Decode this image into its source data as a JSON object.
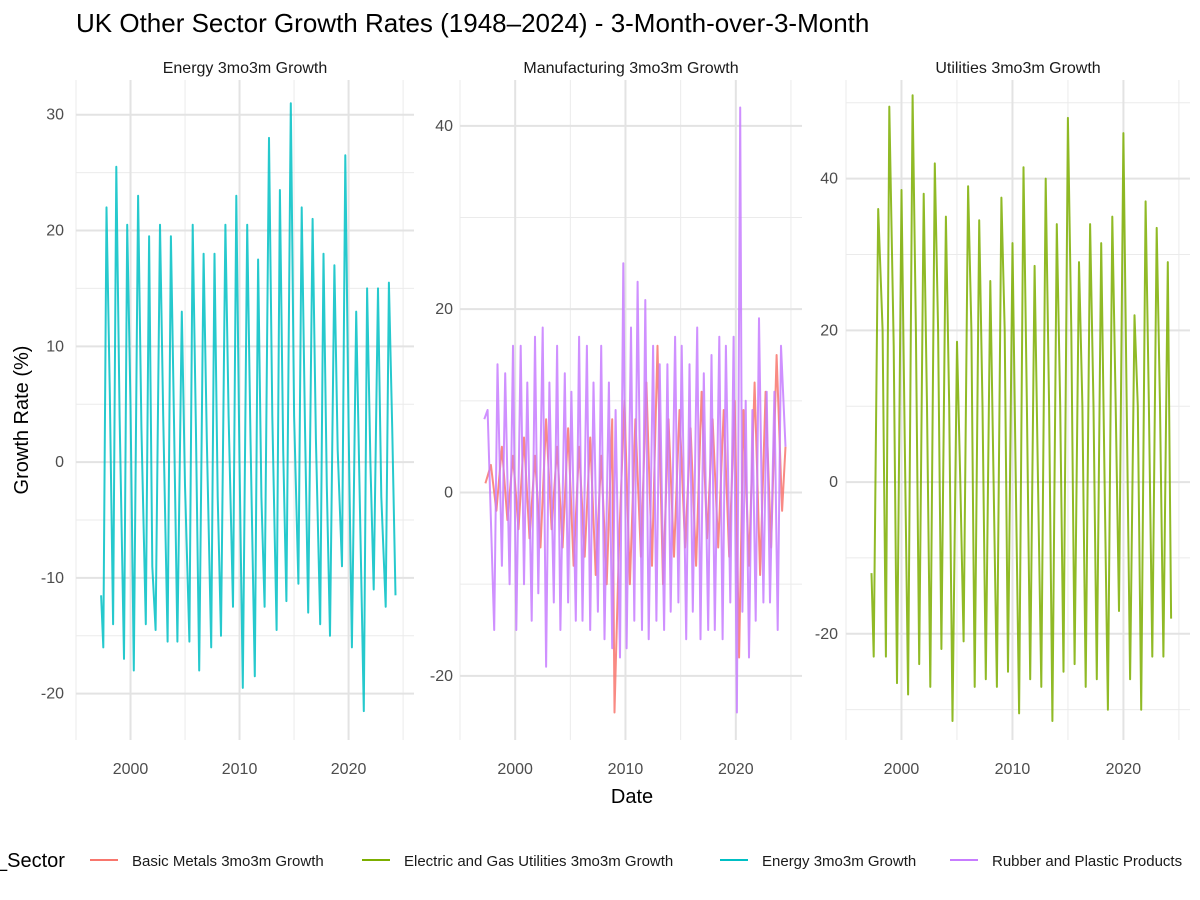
{
  "chart_data": {
    "type": "line",
    "title": "UK Other Sector Growth Rates (1948–2024) - 3-Month-over-3-Month",
    "xlabel": "Date",
    "ylabel": "Growth Rate (%)",
    "legend_title": "_Sector",
    "legend_position": "bottom",
    "grid": true,
    "colors": {
      "Basic Metals 3mo3m Growth": "#F8766D",
      "Electric and Gas Utilities 3mo3m Growth": "#7CAE00",
      "Energy 3mo3m Growth": "#00BFC4",
      "Rubber and Plastic Products": "#C77CFF"
    },
    "legend": [
      "Basic Metals 3mo3m Growth",
      "Electric and Gas Utilities 3mo3m Growth",
      "Energy 3mo3m Growth",
      "Rubber and Plastic Products"
    ],
    "panels": [
      {
        "title": "Energy 3mo3m Growth",
        "xlim": [
          1995,
          2026
        ],
        "ylim": [
          -24,
          33
        ],
        "x_ticks": [
          2000,
          2010,
          2020
        ],
        "y_ticks": [
          -20,
          -10,
          0,
          10,
          20,
          30
        ],
        "series": [
          {
            "name": "Energy 3mo3m Growth",
            "x": [
              1997.3,
              1997.5,
              1997.8,
              1998.1,
              1998.4,
              1998.7,
              1999.0,
              1999.4,
              1999.7,
              2000.0,
              2000.3,
              2000.7,
              2001.0,
              2001.4,
              2001.7,
              2002.0,
              2002.3,
              2002.7,
              2003.0,
              2003.4,
              2003.7,
              2004.0,
              2004.3,
              2004.7,
              2005.0,
              2005.4,
              2005.7,
              2006.0,
              2006.3,
              2006.7,
              2007.0,
              2007.4,
              2007.7,
              2008.0,
              2008.3,
              2008.7,
              2009.0,
              2009.4,
              2009.7,
              2010.0,
              2010.3,
              2010.7,
              2011.0,
              2011.4,
              2011.7,
              2012.0,
              2012.3,
              2012.7,
              2013.0,
              2013.4,
              2013.7,
              2014.0,
              2014.3,
              2014.7,
              2015.0,
              2015.4,
              2015.7,
              2016.0,
              2016.3,
              2016.7,
              2017.0,
              2017.4,
              2017.7,
              2018.0,
              2018.3,
              2018.7,
              2019.0,
              2019.4,
              2019.7,
              2020.0,
              2020.3,
              2020.7,
              2021.0,
              2021.4,
              2021.7,
              2022.0,
              2022.3,
              2022.7,
              2023.0,
              2023.4,
              2023.7,
              2024.0,
              2024.3
            ],
            "values": [
              -11.5,
              -16,
              22,
              6,
              -14,
              25.5,
              4,
              -17,
              20.5,
              5,
              -18,
              23,
              3,
              -14,
              19.5,
              -9,
              -14.5,
              20.5,
              4,
              -15.5,
              19.5,
              3,
              -15.5,
              13,
              -2,
              -15.5,
              20.5,
              3,
              -18,
              18,
              2,
              -16,
              18,
              -3,
              -15,
              20.5,
              4,
              -12.5,
              23,
              0,
              -19.5,
              20.5,
              2,
              -18.5,
              17.5,
              -3,
              -12.5,
              28,
              4,
              -14.5,
              23.5,
              1,
              -12,
              31,
              4,
              -10.5,
              22,
              3,
              -13,
              21,
              2,
              -14,
              18,
              -2,
              -15,
              17,
              1,
              -9,
              26.5,
              3,
              -16,
              13,
              -2,
              -21.5,
              15,
              0,
              -11,
              15,
              -3,
              -12.5,
              15.5,
              3,
              -11.5
            ]
          }
        ]
      },
      {
        "title": "Manufacturing 3mo3m Growth",
        "xlim": [
          1995,
          2026
        ],
        "ylim": [
          -27,
          45
        ],
        "x_ticks": [
          2000,
          2010,
          2020
        ],
        "y_ticks": [
          -20,
          0,
          20,
          40
        ],
        "series": [
          {
            "name": "Basic Metals 3mo3m Growth",
            "x": [
              1997.3,
              1997.8,
              1998.3,
              1998.8,
              1999.3,
              1999.8,
              2000.3,
              2000.8,
              2001.3,
              2001.8,
              2002.3,
              2002.8,
              2003.3,
              2003.8,
              2004.3,
              2004.8,
              2005.3,
              2005.8,
              2006.3,
              2006.8,
              2007.3,
              2007.8,
              2008.3,
              2008.8,
              2009.0,
              2009.4,
              2009.9,
              2010.4,
              2010.9,
              2011.4,
              2011.9,
              2012.4,
              2012.9,
              2013.4,
              2013.9,
              2014.4,
              2014.9,
              2015.4,
              2015.9,
              2016.4,
              2016.9,
              2017.4,
              2017.9,
              2018.4,
              2018.9,
              2019.4,
              2019.9,
              2020.3,
              2020.7,
              2021.2,
              2021.7,
              2022.2,
              2022.7,
              2023.2,
              2023.7,
              2024.2,
              2024.5
            ],
            "values": [
              1,
              3,
              -2,
              5,
              -3,
              4,
              -4,
              6,
              -5,
              4,
              -6,
              8,
              -4,
              5,
              -6,
              7,
              -8,
              5,
              -7,
              6,
              -9,
              4,
              -10,
              8,
              -24,
              -6,
              10,
              -10,
              8,
              -7,
              12,
              -8,
              16,
              -10,
              8,
              -7,
              9,
              -6,
              7,
              -8,
              11,
              -5,
              8,
              -6,
              9,
              -7,
              10,
              -18,
              9,
              -8,
              12,
              -9,
              11,
              -6,
              15,
              -2,
              5
            ]
          },
          {
            "name": "Rubber and Plastic Products",
            "x": [
              1997.2,
              1997.5,
              1997.8,
              1998.1,
              1998.4,
              1998.8,
              1999.1,
              1999.5,
              1999.8,
              2000.1,
              2000.5,
              2000.8,
              2001.1,
              2001.5,
              2001.8,
              2002.1,
              2002.5,
              2002.8,
              2003.1,
              2003.5,
              2003.8,
              2004.1,
              2004.5,
              2004.8,
              2005.1,
              2005.5,
              2005.8,
              2006.1,
              2006.5,
              2006.8,
              2007.1,
              2007.5,
              2007.8,
              2008.1,
              2008.5,
              2008.8,
              2009.1,
              2009.5,
              2009.8,
              2010.1,
              2010.5,
              2010.8,
              2011.1,
              2011.5,
              2011.8,
              2012.1,
              2012.5,
              2012.8,
              2013.1,
              2013.5,
              2013.8,
              2014.1,
              2014.5,
              2014.8,
              2015.1,
              2015.5,
              2015.8,
              2016.1,
              2016.5,
              2016.8,
              2017.1,
              2017.5,
              2017.8,
              2018.1,
              2018.5,
              2018.8,
              2019.1,
              2019.5,
              2019.8,
              2020.1,
              2020.4,
              2020.6,
              2020.9,
              2021.2,
              2021.5,
              2021.8,
              2022.1,
              2022.5,
              2022.8,
              2023.1,
              2023.5,
              2023.8,
              2024.1,
              2024.5
            ],
            "values": [
              8,
              9,
              -3,
              -15,
              14,
              -8,
              13,
              -10,
              16,
              -15,
              16,
              -10,
              12,
              -14,
              17,
              -11,
              18,
              -19,
              12,
              -12,
              16,
              -15,
              13,
              -12,
              11,
              -14,
              17,
              -14,
              16,
              -15,
              12,
              -13,
              16,
              -16,
              12,
              -17,
              9,
              -18,
              25,
              -17,
              18,
              -14,
              23,
              -15,
              21,
              -16,
              16,
              -14,
              14,
              -15,
              14,
              -13,
              17,
              -12,
              16,
              -16,
              14,
              -13,
              18,
              -16,
              13,
              -15,
              15,
              -15,
              17,
              -16,
              16,
              -12,
              17,
              -24,
              42,
              -13,
              10,
              -18,
              9,
              -14,
              19,
              -12,
              11,
              -12,
              11,
              -15,
              16,
              5
            ]
          }
        ]
      },
      {
        "title": "Utilities 3mo3m Growth",
        "xlim": [
          1995,
          2026
        ],
        "ylim": [
          -34,
          53
        ],
        "x_ticks": [
          2000,
          2010,
          2020
        ],
        "y_ticks": [
          -20,
          0,
          20,
          40
        ],
        "series": [
          {
            "name": "Electric and Gas Utilities 3mo3m Growth",
            "x": [
              1997.3,
              1997.5,
              1997.9,
              1998.3,
              1998.6,
              1998.9,
              1999.3,
              1999.6,
              2000.0,
              2000.3,
              2000.6,
              2001.0,
              2001.3,
              2001.6,
              2002.0,
              2002.3,
              2002.6,
              2003.0,
              2003.3,
              2003.6,
              2004.0,
              2004.3,
              2004.6,
              2005.0,
              2005.3,
              2005.6,
              2006.0,
              2006.3,
              2006.6,
              2007.0,
              2007.3,
              2007.6,
              2008.0,
              2008.3,
              2008.6,
              2009.0,
              2009.3,
              2009.6,
              2010.0,
              2010.3,
              2010.6,
              2011.0,
              2011.3,
              2011.6,
              2012.0,
              2012.3,
              2012.6,
              2013.0,
              2013.3,
              2013.6,
              2014.0,
              2014.3,
              2014.6,
              2015.0,
              2015.3,
              2015.6,
              2016.0,
              2016.3,
              2016.6,
              2017.0,
              2017.3,
              2017.6,
              2018.0,
              2018.3,
              2018.6,
              2019.0,
              2019.3,
              2019.6,
              2020.0,
              2020.3,
              2020.6,
              2021.0,
              2021.3,
              2021.6,
              2022.0,
              2022.3,
              2022.6,
              2023.0,
              2023.3,
              2023.6,
              2024.0,
              2024.3
            ],
            "values": [
              -12,
              -23,
              36,
              20,
              -23,
              49.5,
              18,
              -26.5,
              38.5,
              5,
              -28,
              51,
              20,
              -24,
              38,
              10,
              -27,
              42,
              20,
              -22,
              35,
              10,
              -31.5,
              18.5,
              0,
              -21,
              39,
              20,
              -27,
              34.5,
              10,
              -26,
              26.5,
              0,
              -27,
              37.5,
              20,
              -25,
              31.5,
              0,
              -30.5,
              41.5,
              10,
              -26,
              28.5,
              0,
              -27,
              40,
              10,
              -31.5,
              34,
              10,
              -25,
              48,
              20,
              -24,
              29,
              10,
              -27,
              34,
              10,
              -26,
              31.5,
              0,
              -30,
              35,
              10,
              -17,
              46,
              10,
              -26,
              22,
              10,
              -30,
              37,
              10,
              -23,
              33.5,
              10,
              -23,
              29,
              -18
            ]
          }
        ]
      }
    ]
  }
}
